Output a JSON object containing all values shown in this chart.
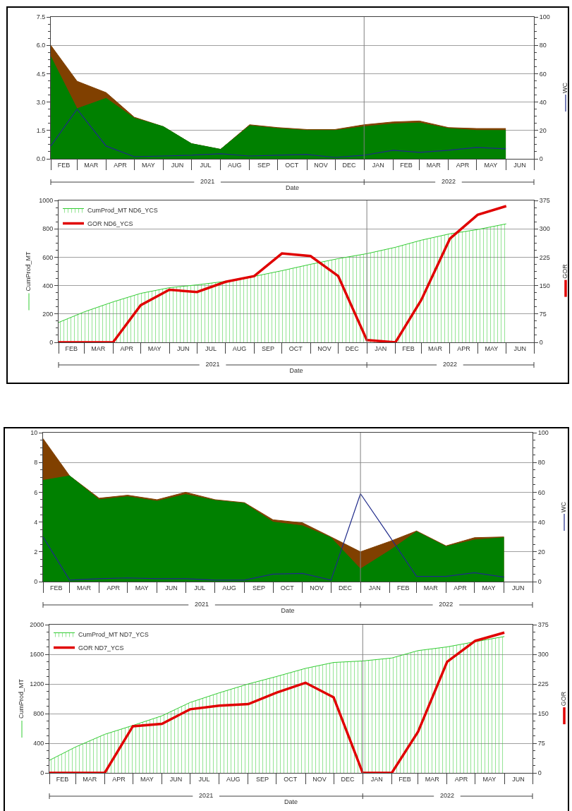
{
  "chart_data": [
    {
      "type": "area",
      "xlabel": "Date",
      "y2label": "WC",
      "x": [
        "2021-02-01",
        "2021-03-01",
        "2021-04-01",
        "2021-05-01",
        "2021-06-01",
        "2021-07-01",
        "2021-08-01",
        "2021-09-01",
        "2021-10-01",
        "2021-11-01",
        "2021-12-01",
        "2022-01-01",
        "2022-02-01",
        "2022-03-01",
        "2022-04-01",
        "2022-05-01",
        "2022-06-01"
      ],
      "xlim": [
        "2021-02-01",
        "2022-07-01"
      ],
      "xticks": [
        {
          "value": "2021-02-01",
          "label": null
        },
        {
          "value": "2021-02-15",
          "label": "FEB"
        },
        {
          "value": "2021-03-01",
          "label": null
        },
        {
          "value": "2021-03-16",
          "label": "MAR"
        },
        {
          "value": "2021-04-01",
          "label": null
        },
        {
          "value": "2021-04-16",
          "label": "APR"
        },
        {
          "value": "2021-05-01",
          "label": null
        },
        {
          "value": "2021-05-16",
          "label": "MAY"
        },
        {
          "value": "2021-06-01",
          "label": null
        },
        {
          "value": "2021-06-16",
          "label": "JUN"
        },
        {
          "value": "2021-07-01",
          "label": null
        },
        {
          "value": "2021-07-16",
          "label": "JUL"
        },
        {
          "value": "2021-08-01",
          "label": null
        },
        {
          "value": "2021-08-16",
          "label": "AUG"
        },
        {
          "value": "2021-09-01",
          "label": null
        },
        {
          "value": "2021-09-16",
          "label": "SEP"
        },
        {
          "value": "2021-10-01",
          "label": null
        },
        {
          "value": "2021-10-16",
          "label": "OCT"
        },
        {
          "value": "2021-11-01",
          "label": null
        },
        {
          "value": "2021-11-16",
          "label": "NOV"
        },
        {
          "value": "2021-12-01",
          "label": null
        },
        {
          "value": "2021-12-16",
          "label": "DEC"
        },
        {
          "value": "2022-01-01",
          "label": null
        },
        {
          "value": "2022-01-16",
          "label": "JAN"
        },
        {
          "value": "2022-02-01",
          "label": null
        },
        {
          "value": "2022-02-15",
          "label": "FEB"
        },
        {
          "value": "2022-03-01",
          "label": null
        },
        {
          "value": "2022-03-16",
          "label": "MAR"
        },
        {
          "value": "2022-04-01",
          "label": null
        },
        {
          "value": "2022-04-16",
          "label": "APR"
        },
        {
          "value": "2022-05-01",
          "label": null
        },
        {
          "value": "2022-05-16",
          "label": "MAY"
        },
        {
          "value": "2022-06-01",
          "label": null
        },
        {
          "value": "2022-06-16",
          "label": "JUN"
        },
        {
          "value": "2022-07-01",
          "label": null
        }
      ],
      "x2lim": [
        "2021-02-01",
        "2022-07-01"
      ],
      "x2ticks": [
        {
          "value": "2021-02-01",
          "label": null
        },
        {
          "value": "2021-07-18",
          "label": "2021"
        },
        {
          "value": "2022-01-01",
          "label": null
        },
        {
          "value": "2022-04-01",
          "label": "2022"
        },
        {
          "value": "2022-07-01",
          "label": null
        }
      ],
      "ylim": [
        0,
        7.5
      ],
      "yticks": [
        {
          "value": 0,
          "label": "0.0"
        },
        1.5,
        {
          "value": 3,
          "label": "3.0"
        },
        4.5,
        {
          "value": 6,
          "label": "6.0"
        },
        7.5
      ],
      "y2lim": [
        0,
        100
      ],
      "y2ticks": [
        0,
        20,
        40,
        60,
        80,
        100
      ],
      "grid": "y",
      "ref_lines": [
        {
          "axis": "x",
          "value": "2022-01-01",
          "color": "#808080"
        }
      ],
      "series": [
        {
          "color": "#804000",
          "values": [
            6.0,
            4.1,
            3.5,
            2.2,
            1.7,
            0.8,
            0.5,
            1.8,
            1.65,
            1.55,
            1.55,
            1.8,
            1.95,
            2.0,
            1.65,
            1.6,
            1.6
          ]
        },
        {
          "color": "#008000",
          "values": [
            5.4,
            2.65,
            3.2,
            2.15,
            1.7,
            0.8,
            0.5,
            1.75,
            1.6,
            1.5,
            1.5,
            1.7,
            1.85,
            1.9,
            1.6,
            1.5,
            1.5
          ]
        },
        {
          "type": "line",
          "axis": "y2",
          "color": "#1f2a8a",
          "values": [
            9,
            35,
            9,
            1.5,
            2,
            2.5,
            3.5,
            2,
            2.5,
            3,
            1,
            2.5,
            6,
            4.5,
            6,
            8,
            7
          ]
        }
      ]
    },
    {
      "type": "area",
      "xlabel": "Date",
      "ylabel": "CumProd_MT",
      "y2label": "GOR",
      "legend": "top left",
      "x": [
        "2021-02-01",
        "2021-03-01",
        "2021-04-01",
        "2021-05-01",
        "2021-06-01",
        "2021-07-01",
        "2021-08-01",
        "2021-09-01",
        "2021-10-01",
        "2021-11-01",
        "2021-12-01",
        "2022-01-01",
        "2022-02-01",
        "2022-03-01",
        "2022-04-01",
        "2022-05-01",
        "2022-06-01"
      ],
      "xlim": [
        "2021-02-01",
        "2022-07-01"
      ],
      "xticks": [
        {
          "value": "2021-02-01",
          "label": null
        },
        {
          "value": "2021-02-15",
          "label": "FEB"
        },
        {
          "value": "2021-03-01",
          "label": null
        },
        {
          "value": "2021-03-16",
          "label": "MAR"
        },
        {
          "value": "2021-04-01",
          "label": null
        },
        {
          "value": "2021-04-16",
          "label": "APR"
        },
        {
          "value": "2021-05-01",
          "label": null
        },
        {
          "value": "2021-05-16",
          "label": "MAY"
        },
        {
          "value": "2021-06-01",
          "label": null
        },
        {
          "value": "2021-06-16",
          "label": "JUN"
        },
        {
          "value": "2021-07-01",
          "label": null
        },
        {
          "value": "2021-07-16",
          "label": "JUL"
        },
        {
          "value": "2021-08-01",
          "label": null
        },
        {
          "value": "2021-08-16",
          "label": "AUG"
        },
        {
          "value": "2021-09-01",
          "label": null
        },
        {
          "value": "2021-09-16",
          "label": "SEP"
        },
        {
          "value": "2021-10-01",
          "label": null
        },
        {
          "value": "2021-10-16",
          "label": "OCT"
        },
        {
          "value": "2021-11-01",
          "label": null
        },
        {
          "value": "2021-11-16",
          "label": "NOV"
        },
        {
          "value": "2021-12-01",
          "label": null
        },
        {
          "value": "2021-12-16",
          "label": "DEC"
        },
        {
          "value": "2022-01-01",
          "label": null
        },
        {
          "value": "2022-01-16",
          "label": "JAN"
        },
        {
          "value": "2022-02-01",
          "label": null
        },
        {
          "value": "2022-02-15",
          "label": "FEB"
        },
        {
          "value": "2022-03-01",
          "label": null
        },
        {
          "value": "2022-03-16",
          "label": "MAR"
        },
        {
          "value": "2022-04-01",
          "label": null
        },
        {
          "value": "2022-04-16",
          "label": "APR"
        },
        {
          "value": "2022-05-01",
          "label": null
        },
        {
          "value": "2022-05-16",
          "label": "MAY"
        },
        {
          "value": "2022-06-01",
          "label": null
        },
        {
          "value": "2022-06-16",
          "label": "JUN"
        },
        {
          "value": "2022-07-01",
          "label": null
        }
      ],
      "x2lim": [
        "2021-02-01",
        "2022-07-01"
      ],
      "x2ticks": [
        {
          "value": "2021-02-01",
          "label": null
        },
        {
          "value": "2021-07-18",
          "label": "2021"
        },
        {
          "value": "2022-01-01",
          "label": null
        },
        {
          "value": "2022-04-01",
          "label": "2022"
        },
        {
          "value": "2022-07-01",
          "label": null
        }
      ],
      "ylim": [
        0,
        1000
      ],
      "yticks": [
        0,
        200,
        400,
        600,
        800,
        1000
      ],
      "y2lim": [
        0,
        375
      ],
      "y2ticks": [
        0,
        75,
        150,
        225,
        300,
        375
      ],
      "grid": "y",
      "ref_lines": [
        {
          "axis": "x",
          "value": "2022-01-01",
          "color": "#808080"
        }
      ],
      "series": [
        {
          "name": "CumProd_MT ND6_YCS",
          "color": "#33cc33",
          "values": [
            140,
            215,
            285,
            345,
            385,
            405,
            430,
            465,
            505,
            550,
            590,
            625,
            670,
            720,
            765,
            795,
            835
          ]
        },
        {
          "name": "GOR ND6_YCS",
          "type": "line",
          "axis": "y2",
          "color": "#e00000",
          "values": [
            0,
            0,
            0,
            98,
            139,
            133,
            160,
            175,
            235,
            228,
            175,
            6,
            0,
            112,
            274,
            337,
            360
          ]
        }
      ]
    },
    {
      "type": "area",
      "xlabel": "Date",
      "y2label": "WC",
      "x": [
        "2021-02-01",
        "2021-03-01",
        "2021-04-01",
        "2021-05-01",
        "2021-06-01",
        "2021-07-01",
        "2021-08-01",
        "2021-09-01",
        "2021-10-01",
        "2021-11-01",
        "2021-12-01",
        "2022-01-01",
        "2022-02-01",
        "2022-03-01",
        "2022-04-01",
        "2022-05-01",
        "2022-06-01"
      ],
      "xlim": [
        "2021-02-01",
        "2022-07-01"
      ],
      "xticks": [
        {
          "value": "2021-02-01",
          "label": null
        },
        {
          "value": "2021-02-15",
          "label": "FEB"
        },
        {
          "value": "2021-03-01",
          "label": null
        },
        {
          "value": "2021-03-16",
          "label": "MAR"
        },
        {
          "value": "2021-04-01",
          "label": null
        },
        {
          "value": "2021-04-16",
          "label": "APR"
        },
        {
          "value": "2021-05-01",
          "label": null
        },
        {
          "value": "2021-05-16",
          "label": "MAY"
        },
        {
          "value": "2021-06-01",
          "label": null
        },
        {
          "value": "2021-06-16",
          "label": "JUN"
        },
        {
          "value": "2021-07-01",
          "label": null
        },
        {
          "value": "2021-07-16",
          "label": "JUL"
        },
        {
          "value": "2021-08-01",
          "label": null
        },
        {
          "value": "2021-08-16",
          "label": "AUG"
        },
        {
          "value": "2021-09-01",
          "label": null
        },
        {
          "value": "2021-09-16",
          "label": "SEP"
        },
        {
          "value": "2021-10-01",
          "label": null
        },
        {
          "value": "2021-10-16",
          "label": "OCT"
        },
        {
          "value": "2021-11-01",
          "label": null
        },
        {
          "value": "2021-11-16",
          "label": "NOV"
        },
        {
          "value": "2021-12-01",
          "label": null
        },
        {
          "value": "2021-12-16",
          "label": "DEC"
        },
        {
          "value": "2022-01-01",
          "label": null
        },
        {
          "value": "2022-01-16",
          "label": "JAN"
        },
        {
          "value": "2022-02-01",
          "label": null
        },
        {
          "value": "2022-02-15",
          "label": "FEB"
        },
        {
          "value": "2022-03-01",
          "label": null
        },
        {
          "value": "2022-03-16",
          "label": "MAR"
        },
        {
          "value": "2022-04-01",
          "label": null
        },
        {
          "value": "2022-04-16",
          "label": "APR"
        },
        {
          "value": "2022-05-01",
          "label": null
        },
        {
          "value": "2022-05-16",
          "label": "MAY"
        },
        {
          "value": "2022-06-01",
          "label": null
        },
        {
          "value": "2022-06-16",
          "label": "JUN"
        },
        {
          "value": "2022-07-01",
          "label": null
        }
      ],
      "x2lim": [
        "2021-02-01",
        "2022-07-01"
      ],
      "x2ticks": [
        {
          "value": "2021-02-01",
          "label": null
        },
        {
          "value": "2021-07-18",
          "label": "2021"
        },
        {
          "value": "2022-01-01",
          "label": null
        },
        {
          "value": "2022-04-01",
          "label": "2022"
        },
        {
          "value": "2022-07-01",
          "label": null
        }
      ],
      "ylim": [
        0,
        10
      ],
      "yticks": [
        0,
        2,
        4,
        6,
        8,
        10
      ],
      "y2lim": [
        0,
        100
      ],
      "y2ticks": [
        0,
        20,
        40,
        60,
        80,
        100
      ],
      "grid": "y",
      "ref_lines": [
        {
          "axis": "x",
          "value": "2022-01-01",
          "color": "#808080"
        }
      ],
      "series": [
        {
          "color": "#804000",
          "values": [
            9.6,
            7.1,
            5.6,
            5.8,
            5.5,
            6.0,
            5.5,
            5.3,
            4.15,
            3.95,
            3.0,
            2.0,
            2.7,
            3.4,
            2.4,
            2.95,
            3.0
          ]
        },
        {
          "color": "#008000",
          "values": [
            6.8,
            7.1,
            5.5,
            5.7,
            5.4,
            5.85,
            5.45,
            5.25,
            4.0,
            3.75,
            2.95,
            0.85,
            2.1,
            3.35,
            2.35,
            2.8,
            2.95
          ]
        },
        {
          "type": "line",
          "axis": "y2",
          "color": "#1f2a8a",
          "values": [
            30,
            1,
            2,
            2.5,
            2,
            2,
            1,
            1,
            5,
            5.5,
            1,
            59,
            30,
            3.5,
            3.5,
            6,
            3
          ]
        }
      ]
    },
    {
      "type": "area",
      "xlabel": "Date",
      "ylabel": "CumProd_MT",
      "y2label": "GOR",
      "legend": "top left",
      "x": [
        "2021-02-01",
        "2021-03-01",
        "2021-04-01",
        "2021-05-01",
        "2021-06-01",
        "2021-07-01",
        "2021-08-01",
        "2021-09-01",
        "2021-10-01",
        "2021-11-01",
        "2021-12-01",
        "2022-01-01",
        "2022-02-01",
        "2022-03-01",
        "2022-04-01",
        "2022-05-01",
        "2022-06-01"
      ],
      "xlim": [
        "2021-02-01",
        "2022-07-01"
      ],
      "xticks": [
        {
          "value": "2021-02-01",
          "label": null
        },
        {
          "value": "2021-02-15",
          "label": "FEB"
        },
        {
          "value": "2021-03-01",
          "label": null
        },
        {
          "value": "2021-03-16",
          "label": "MAR"
        },
        {
          "value": "2021-04-01",
          "label": null
        },
        {
          "value": "2021-04-16",
          "label": "APR"
        },
        {
          "value": "2021-05-01",
          "label": null
        },
        {
          "value": "2021-05-16",
          "label": "MAY"
        },
        {
          "value": "2021-06-01",
          "label": null
        },
        {
          "value": "2021-06-16",
          "label": "JUN"
        },
        {
          "value": "2021-07-01",
          "label": null
        },
        {
          "value": "2021-07-16",
          "label": "JUL"
        },
        {
          "value": "2021-08-01",
          "label": null
        },
        {
          "value": "2021-08-16",
          "label": "AUG"
        },
        {
          "value": "2021-09-01",
          "label": null
        },
        {
          "value": "2021-09-16",
          "label": "SEP"
        },
        {
          "value": "2021-10-01",
          "label": null
        },
        {
          "value": "2021-10-16",
          "label": "OCT"
        },
        {
          "value": "2021-11-01",
          "label": null
        },
        {
          "value": "2021-11-16",
          "label": "NOV"
        },
        {
          "value": "2021-12-01",
          "label": null
        },
        {
          "value": "2021-12-16",
          "label": "DEC"
        },
        {
          "value": "2022-01-01",
          "label": null
        },
        {
          "value": "2022-01-16",
          "label": "JAN"
        },
        {
          "value": "2022-02-01",
          "label": null
        },
        {
          "value": "2022-02-15",
          "label": "FEB"
        },
        {
          "value": "2022-03-01",
          "label": null
        },
        {
          "value": "2022-03-16",
          "label": "MAR"
        },
        {
          "value": "2022-04-01",
          "label": null
        },
        {
          "value": "2022-04-16",
          "label": "APR"
        },
        {
          "value": "2022-05-01",
          "label": null
        },
        {
          "value": "2022-05-16",
          "label": "MAY"
        },
        {
          "value": "2022-06-01",
          "label": null
        },
        {
          "value": "2022-06-16",
          "label": "JUN"
        },
        {
          "value": "2022-07-01",
          "label": null
        }
      ],
      "x2lim": [
        "2021-02-01",
        "2022-07-01"
      ],
      "x2ticks": [
        {
          "value": "2021-02-01",
          "label": null
        },
        {
          "value": "2021-07-18",
          "label": "2021"
        },
        {
          "value": "2022-01-01",
          "label": null
        },
        {
          "value": "2022-04-01",
          "label": "2022"
        },
        {
          "value": "2022-07-01",
          "label": null
        }
      ],
      "ylim": [
        0,
        2000
      ],
      "yticks": [
        0,
        400,
        800,
        1200,
        1600,
        2000
      ],
      "y2lim": [
        0,
        375
      ],
      "y2ticks": [
        0,
        75,
        150,
        225,
        300,
        375
      ],
      "grid": "y",
      "ref_lines": [
        {
          "axis": "x",
          "value": "2022-01-01",
          "color": "#808080"
        }
      ],
      "series": [
        {
          "name": "CumProd_MT ND7_YCS",
          "color": "#33cc33",
          "values": [
            170,
            350,
            520,
            640,
            770,
            950,
            1080,
            1200,
            1300,
            1410,
            1490,
            1510,
            1550,
            1650,
            1700,
            1770,
            1840
          ]
        },
        {
          "name": "GOR ND7_YCS",
          "type": "line",
          "axis": "y2",
          "color": "#e00000",
          "values": [
            0,
            0,
            0,
            118,
            124,
            161,
            170,
            174,
            203,
            228,
            191,
            0,
            0,
            104,
            281,
            334,
            355
          ]
        }
      ]
    }
  ]
}
